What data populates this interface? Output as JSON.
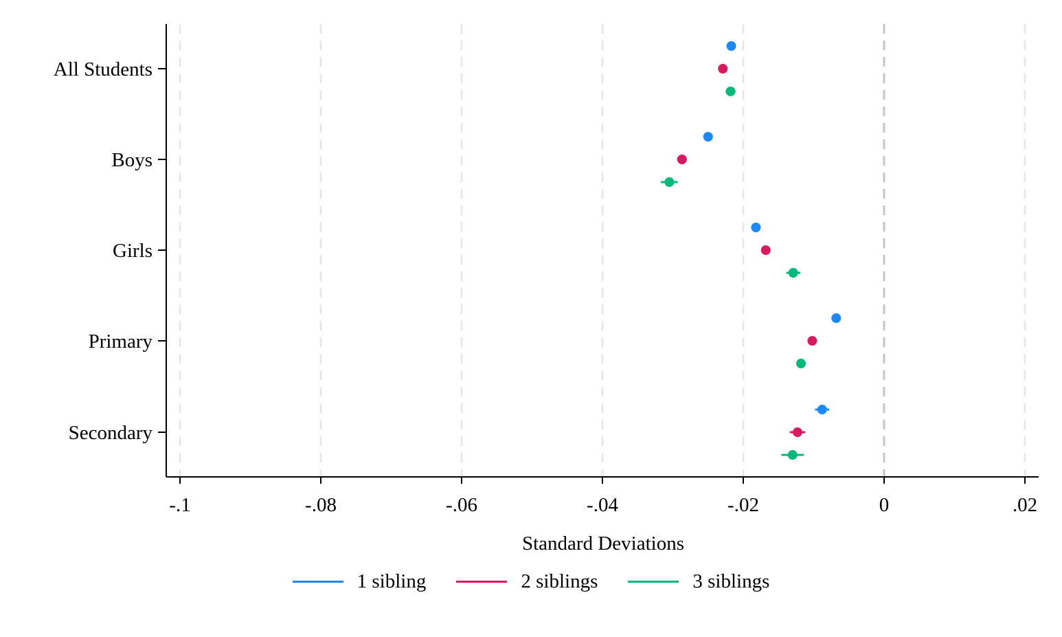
{
  "chart_data": {
    "type": "scatter",
    "orientation": "horizontal",
    "xlabel": "Standard Deviations",
    "xlim": [
      -0.102,
      0.022
    ],
    "xticks": [
      {
        "value": -0.1,
        "label": "-.1"
      },
      {
        "value": -0.08,
        "label": "-.08"
      },
      {
        "value": -0.06,
        "label": "-.06"
      },
      {
        "value": -0.04,
        "label": "-.04"
      },
      {
        "value": -0.02,
        "label": "-.02"
      },
      {
        "value": 0,
        "label": "0"
      },
      {
        "value": 0.02,
        "label": ".02"
      }
    ],
    "categories": [
      "All Students",
      "Boys",
      "Girls",
      "Primary",
      "Secondary"
    ],
    "grid": "vertical dashed",
    "reference_line": 0,
    "legend_position": "bottom",
    "series": [
      {
        "name": "1 sibling",
        "color": "#1E88F5",
        "values": [
          -0.0217,
          -0.025,
          -0.0182,
          -0.0068,
          -0.0088
        ],
        "ci_low": [
          -0.0222,
          -0.0255,
          -0.0187,
          -0.0073,
          -0.0098
        ],
        "ci_high": [
          -0.0212,
          -0.0245,
          -0.0177,
          -0.0063,
          -0.0078
        ]
      },
      {
        "name": "2 siblings",
        "color": "#D81B60",
        "values": [
          -0.0229,
          -0.0287,
          -0.0168,
          -0.0102,
          -0.0123
        ],
        "ci_low": [
          -0.0234,
          -0.0294,
          -0.0174,
          -0.0107,
          -0.0134
        ],
        "ci_high": [
          -0.0224,
          -0.028,
          -0.0162,
          -0.0097,
          -0.0112
        ]
      },
      {
        "name": "3 siblings",
        "color": "#00B97A",
        "values": [
          -0.0218,
          -0.0305,
          -0.0129,
          -0.0118,
          -0.013
        ],
        "ci_low": [
          -0.0225,
          -0.0317,
          -0.0139,
          -0.0124,
          -0.0146
        ],
        "ci_high": [
          -0.0211,
          -0.0293,
          -0.0119,
          -0.0112,
          -0.0114
        ]
      }
    ]
  }
}
